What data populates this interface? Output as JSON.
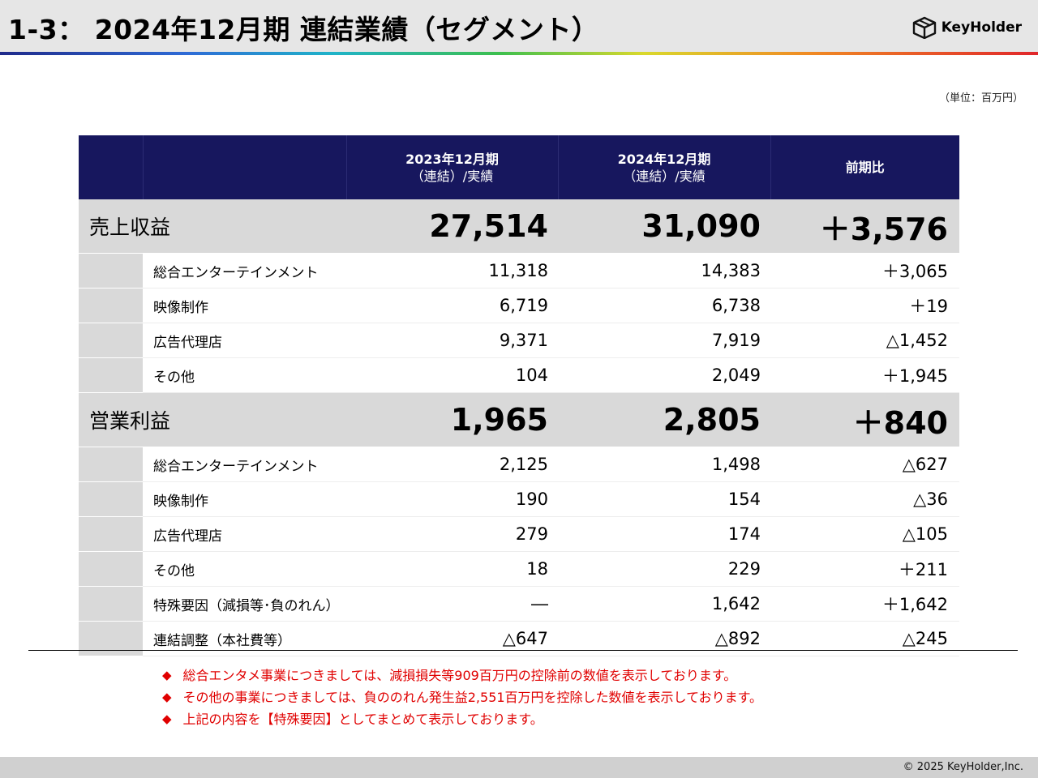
{
  "header": {
    "title": "1-3： 2024年12月期 連結業績（セグメント）",
    "logo_text": "KeyHolder"
  },
  "unit_note": "（単位：百万円）",
  "table": {
    "columns": [
      "",
      "",
      "2023年12月期\n（連結）/実績",
      "2024年12月期\n（連結）/実績",
      "前期比"
    ],
    "col_2023_line1": "2023年12月期",
    "col_2023_line2": "（連結）/実績",
    "col_2024_line1": "2024年12月期",
    "col_2024_line2": "（連結）/実績",
    "col_diff": "前期比",
    "revenue": {
      "label": "売上収益",
      "y2023": "27,514",
      "y2024": "31,090",
      "diff": "＋3,576",
      "rows": [
        {
          "name": "総合エンターテインメント",
          "y2023": "11,318",
          "y2024": "14,383",
          "diff": "＋3,065"
        },
        {
          "name": "映像制作",
          "y2023": "6,719",
          "y2024": "6,738",
          "diff": "＋19"
        },
        {
          "name": "広告代理店",
          "y2023": "9,371",
          "y2024": "7,919",
          "diff": "△1,452"
        },
        {
          "name": "その他",
          "y2023": "104",
          "y2024": "2,049",
          "diff": "＋1,945"
        }
      ]
    },
    "operating_profit": {
      "label": "営業利益",
      "y2023": "1,965",
      "y2024": "2,805",
      "diff": "＋840",
      "rows": [
        {
          "name": "総合エンターテインメント",
          "y2023": "2,125",
          "y2024": "1,498",
          "diff": "△627"
        },
        {
          "name": "映像制作",
          "y2023": "190",
          "y2024": "154",
          "diff": "△36"
        },
        {
          "name": "広告代理店",
          "y2023": "279",
          "y2024": "174",
          "diff": "△105"
        },
        {
          "name": "その他",
          "y2023": "18",
          "y2024": "229",
          "diff": "＋211"
        },
        {
          "name": "特殊要因（減損等･負のれん）",
          "y2023": "―",
          "y2024": "1,642",
          "diff": "＋1,642"
        },
        {
          "name": "連結調整（本社費等）",
          "y2023": "△647",
          "y2024": "△892",
          "diff": "△245"
        }
      ]
    }
  },
  "notes": [
    "総合エンタメ事業につきましては、減損損失等909百万円の控除前の数値を表示しております。",
    "その他の事業につきましては、負ののれん発生益2,551百万円を控除した数値を表示しております。",
    "上記の内容を【特殊要因】としてまとめて表示しております。"
  ],
  "note_bullet": "◆",
  "footer": {
    "copyright": "© 2025 KeyHolder,Inc."
  },
  "colors": {
    "header_bg": "#e6e6e6",
    "table_header_bg": "#17175e",
    "section_bg": "#d9d9d9",
    "note_red": "#e00000"
  }
}
